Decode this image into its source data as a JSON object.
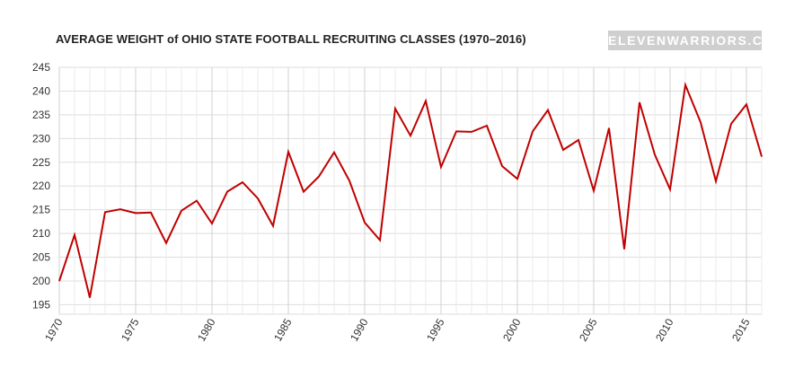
{
  "chart_data": {
    "type": "line",
    "title": "AVERAGE WEIGHT of OHIO STATE FOOTBALL RECRUITING CLASSES (1970–2016)",
    "brand": "ELEVENWARRIORS.COM",
    "xlabel": "",
    "ylabel": "",
    "xlim": [
      1970,
      2016
    ],
    "ylim": [
      193,
      245
    ],
    "yticks": [
      195,
      200,
      205,
      210,
      215,
      220,
      225,
      230,
      235,
      240,
      245
    ],
    "xticks": [
      1970,
      1975,
      1980,
      1985,
      1990,
      1995,
      2000,
      2005,
      2010,
      2015
    ],
    "grid": true,
    "line_color": "#c00000",
    "series": [
      {
        "x": [
          1970,
          1971,
          1972,
          1973,
          1974,
          1975,
          1976,
          1977,
          1978,
          1979,
          1980,
          1981,
          1982,
          1983,
          1984,
          1985,
          1986,
          1987,
          1988,
          1989,
          1990,
          1991,
          1992,
          1993,
          1994,
          1995,
          1996,
          1997,
          1998,
          1999,
          2000,
          2001,
          2002,
          2003,
          2004,
          2005,
          2006,
          2007,
          2008,
          2009,
          2010,
          2011,
          2012,
          2013,
          2014,
          2015,
          2016
        ],
        "values": [
          200.0,
          209.7,
          196.5,
          214.5,
          215.1,
          214.3,
          214.4,
          208.0,
          214.8,
          216.9,
          212.1,
          218.8,
          220.8,
          217.4,
          211.6,
          227.2,
          218.8,
          222.0,
          227.1,
          221.1,
          212.3,
          208.6,
          236.3,
          230.6,
          237.9,
          224.0,
          231.5,
          231.4,
          232.7,
          224.2,
          221.5,
          231.5,
          236.0,
          227.6,
          229.7,
          219.0,
          232.2,
          206.7,
          237.6,
          226.6,
          219.3,
          241.3,
          233.4,
          221.0,
          233.1,
          237.2,
          226.2
        ]
      }
    ]
  }
}
